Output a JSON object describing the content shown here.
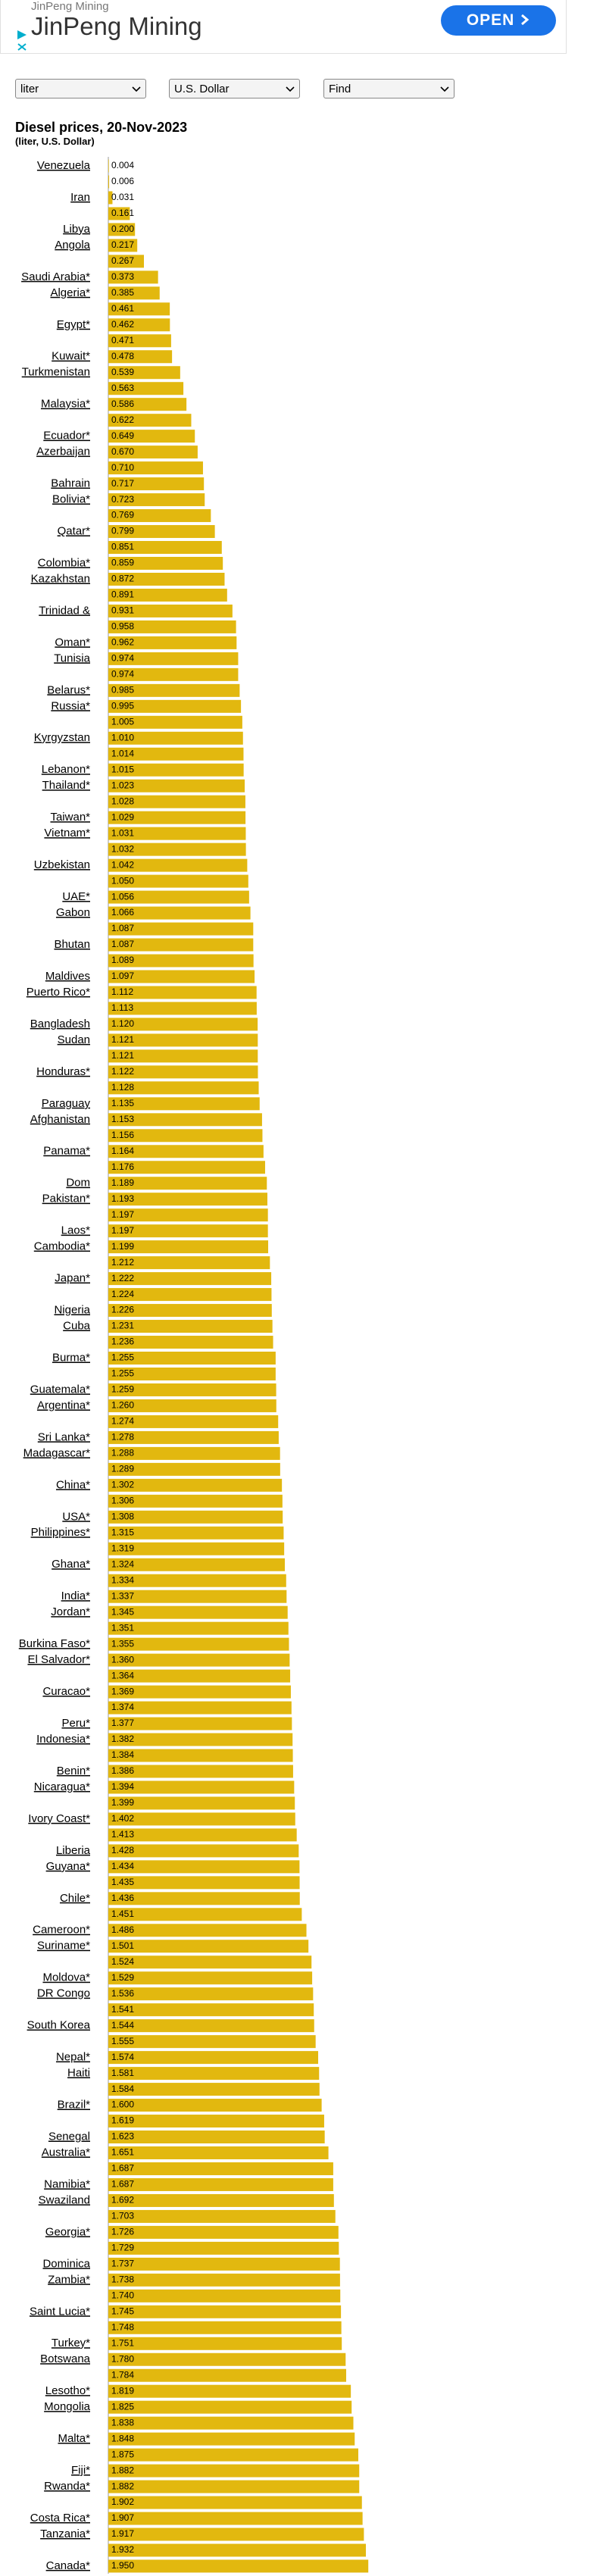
{
  "ad": {
    "brand": "JinPeng Mining",
    "button": "OPEN"
  },
  "controls": [
    "liter",
    "U.S. Dollar",
    "Find"
  ],
  "chart_data": {
    "type": "bar",
    "orientation": "horizontal",
    "title": "Diesel prices, 20-Nov-2023",
    "subtitle": "(liter, U.S. Dollar)",
    "color": "#e2b80f",
    "categories": [
      "Venezuela",
      null,
      "Iran",
      null,
      "Libya",
      "Angola",
      null,
      "Saudi Arabia*",
      "Algeria*",
      null,
      "Egypt*",
      null,
      "Kuwait*",
      "Turkmenistan",
      null,
      "Malaysia*",
      null,
      "Ecuador*",
      "Azerbaijan",
      null,
      "Bahrain",
      "Bolivia*",
      null,
      "Qatar*",
      null,
      "Colombia*",
      "Kazakhstan",
      null,
      "Trinidad &",
      null,
      "Oman*",
      "Tunisia",
      null,
      "Belarus*",
      "Russia*",
      null,
      "Kyrgyzstan",
      null,
      "Lebanon*",
      "Thailand*",
      null,
      "Taiwan*",
      "Vietnam*",
      null,
      "Uzbekistan",
      null,
      "UAE*",
      "Gabon",
      null,
      "Bhutan",
      null,
      "Maldives",
      "Puerto Rico*",
      null,
      "Bangladesh",
      "Sudan",
      null,
      "Honduras*",
      null,
      "Paraguay",
      "Afghanistan",
      null,
      "Panama*",
      null,
      "Dom",
      "Pakistan*",
      null,
      "Laos*",
      "Cambodia*",
      null,
      "Japan*",
      null,
      "Nigeria",
      "Cuba",
      null,
      "Burma*",
      null,
      "Guatemala*",
      "Argentina*",
      null,
      "Sri Lanka*",
      "Madagascar*",
      null,
      "China*",
      null,
      "USA*",
      "Philippines*",
      null,
      "Ghana*",
      null,
      "India*",
      "Jordan*",
      null,
      "Burkina Faso*",
      "El Salvador*",
      null,
      "Curacao*",
      null,
      "Peru*",
      "Indonesia*",
      null,
      "Benin*",
      "Nicaragua*",
      null,
      "Ivory Coast*",
      null,
      "Liberia",
      "Guyana*",
      null,
      "Chile*",
      null,
      "Cameroon*",
      "Suriname*",
      null,
      "Moldova*",
      "DR Congo",
      null,
      "South Korea",
      null,
      "Nepal*",
      "Haiti",
      null,
      "Brazil*",
      null,
      "Senegal",
      "Australia*",
      null,
      "Namibia*",
      "Swaziland",
      null,
      "Georgia*",
      null,
      "Dominica",
      "Zambia*",
      null,
      "Saint Lucia*",
      null,
      "Turkey*",
      "Botswana",
      null,
      "Lesotho*",
      "Mongolia",
      null,
      "Malta*",
      null,
      "Fiji*",
      "Rwanda*",
      null,
      "Costa Rica*",
      "Tanzania*",
      null,
      "Canada*"
    ],
    "values": [
      0.004,
      0.006,
      0.031,
      0.161,
      0.2,
      0.217,
      0.267,
      0.373,
      0.385,
      0.461,
      0.462,
      0.471,
      0.478,
      0.539,
      0.563,
      0.586,
      0.622,
      0.649,
      0.67,
      0.71,
      0.717,
      0.723,
      0.769,
      0.799,
      0.851,
      0.859,
      0.872,
      0.891,
      0.931,
      0.958,
      0.962,
      0.974,
      0.974,
      0.985,
      0.995,
      1.005,
      1.01,
      1.014,
      1.015,
      1.023,
      1.028,
      1.029,
      1.031,
      1.032,
      1.042,
      1.05,
      1.056,
      1.066,
      1.087,
      1.087,
      1.089,
      1.097,
      1.112,
      1.113,
      1.12,
      1.121,
      1.121,
      1.122,
      1.128,
      1.135,
      1.153,
      1.156,
      1.164,
      1.176,
      1.189,
      1.193,
      1.197,
      1.197,
      1.199,
      1.212,
      1.222,
      1.224,
      1.226,
      1.231,
      1.236,
      1.255,
      1.255,
      1.259,
      1.26,
      1.274,
      1.278,
      1.288,
      1.289,
      1.302,
      1.306,
      1.308,
      1.315,
      1.319,
      1.324,
      1.334,
      1.337,
      1.345,
      1.351,
      1.355,
      1.36,
      1.364,
      1.369,
      1.374,
      1.377,
      1.382,
      1.384,
      1.386,
      1.394,
      1.399,
      1.402,
      1.413,
      1.428,
      1.434,
      1.435,
      1.436,
      1.451,
      1.486,
      1.501,
      1.524,
      1.529,
      1.536,
      1.541,
      1.544,
      1.555,
      1.574,
      1.581,
      1.584,
      1.6,
      1.619,
      1.623,
      1.651,
      1.687,
      1.687,
      1.692,
      1.703,
      1.726,
      1.729,
      1.737,
      1.738,
      1.74,
      1.745,
      1.748,
      1.751,
      1.78,
      1.784,
      1.819,
      1.825,
      1.838,
      1.848,
      1.875,
      1.882,
      1.882,
      1.902,
      1.907,
      1.917,
      1.932,
      1.95
    ],
    "value_labels": [
      "0.004",
      "0.006",
      "0.031",
      "0.161",
      "0.200",
      "0.217",
      "0.267",
      "0.373",
      "0.385",
      "0.461",
      "0.462",
      "0.471",
      "0.478",
      "0.539",
      "0.563",
      "0.586",
      "0.622",
      "0.649",
      "0.670",
      "0.710",
      "0.717",
      "0.723",
      "0.769",
      "0.799",
      "0.851",
      "0.859",
      "0.872",
      "0.891",
      "0.931",
      "0.958",
      "0.962",
      "0.974",
      "0.974",
      "0.985",
      "0.995",
      "1.005",
      "1.010",
      "1.014",
      "1.015",
      "1.023",
      "1.028",
      "1.029",
      "1.031",
      "1.032",
      "1.042",
      "1.050",
      "1.056",
      "1.066",
      "1.087",
      "1.087",
      "1.089",
      "1.097",
      "1.112",
      "1.113",
      "1.120",
      "1.121",
      "1.121",
      "1.122",
      "1.128",
      "1.135",
      "1.153",
      "1.156",
      "1.164",
      "1.176",
      "1.189",
      "1.193",
      "1.197",
      "1.197",
      "1.199",
      "1.212",
      "1.222",
      "1.224",
      "1.226",
      "1.231",
      "1.236",
      "1.255",
      "1.255",
      "1.259",
      "1.260",
      "1.274",
      "1.278",
      "1.288",
      "1.289",
      "1.302",
      "1.306",
      "1.308",
      "1.315",
      "1.319",
      "1.324",
      "1.334",
      "1.337",
      "1.345",
      "1.351",
      "1.355",
      "1.360",
      "1.364",
      "1.369",
      "1.374",
      "1.377",
      "1.382",
      "1.384",
      "1.386",
      "1.394",
      "1.399",
      "1.402",
      "1.413",
      "1.428",
      "1.434",
      "1.435",
      "1.436",
      "1.451",
      "1.486",
      "1.501",
      "1.524",
      "1.529",
      "1.536",
      "1.541",
      "1.544",
      "1.555",
      "1.574",
      "1.581",
      "1.584",
      "1.600",
      "1.619",
      "1.623",
      "1.651",
      "1.687",
      "1.687",
      "1.692",
      "1.703",
      "1.726",
      "1.729",
      "1.737",
      "1.738",
      "1.740",
      "1.745",
      "1.748",
      "1.751",
      "1.780",
      "1.784",
      "1.819",
      "1.825",
      "1.838",
      "1.848",
      "1.875",
      "1.882",
      "1.882",
      "1.902",
      "1.907",
      "1.917",
      "1.932",
      "1.950"
    ]
  }
}
